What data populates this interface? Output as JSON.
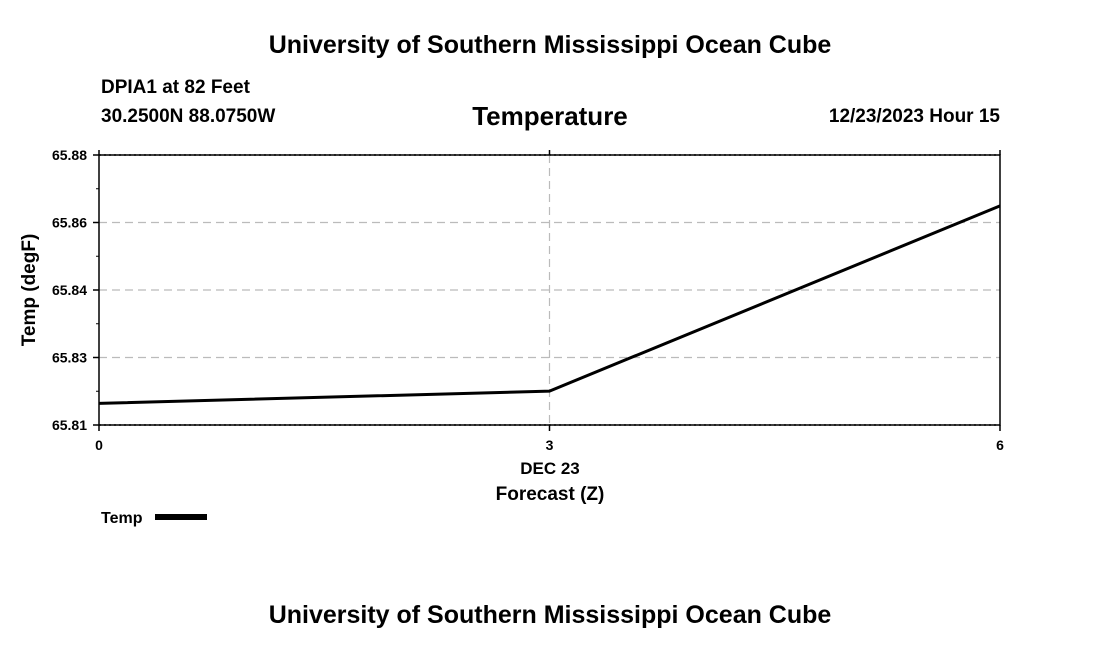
{
  "header": {
    "top_title": "University of Southern Mississippi Ocean Cube",
    "station": "DPIA1 at 82 Feet",
    "coords": "30.2500N  88.0750W",
    "datetime": "12/23/2023 Hour 15",
    "bottom_title": "University of Southern Mississippi Ocean Cube"
  },
  "chart_data": {
    "type": "line",
    "title": "Temperature",
    "xlabel": "Forecast (Z)",
    "xsublabel": "DEC 23",
    "ylabel": "Temp (degF)",
    "xlim": [
      0,
      6
    ],
    "x_ticks": [
      {
        "value": 0,
        "label": "0"
      },
      {
        "value": 3,
        "label": "3"
      },
      {
        "value": 6,
        "label": "6"
      }
    ],
    "y_ticks": [
      "65.81",
      "65.83",
      "65.84",
      "65.86",
      "65.88"
    ],
    "grid": true,
    "legend": {
      "label": "Temp",
      "position": "bottom-left"
    },
    "series": [
      {
        "name": "Temp",
        "color": "#000000",
        "points": [
          {
            "x": 0,
            "y": 65.8156
          },
          {
            "x": 3,
            "y": 65.8188
          },
          {
            "x": 6,
            "y": 65.8668
          }
        ]
      }
    ]
  }
}
